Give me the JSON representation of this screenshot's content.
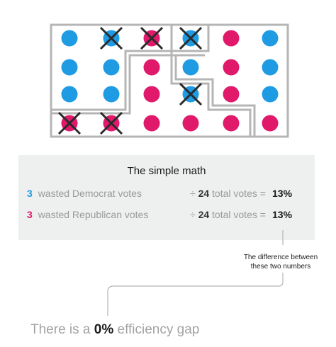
{
  "grid": {
    "colors": {
      "dem": "#1f9be3",
      "rep": "#e0196b",
      "border": "#b5b5b5",
      "cross": "#2a2a2a"
    },
    "dots": [
      {
        "r": 0,
        "c": 0,
        "party": "dem",
        "wasted": false
      },
      {
        "r": 0,
        "c": 1,
        "party": "dem",
        "wasted": true
      },
      {
        "r": 0,
        "c": 2,
        "party": "rep",
        "wasted": true
      },
      {
        "r": 0,
        "c": 3,
        "party": "dem",
        "wasted": true
      },
      {
        "r": 0,
        "c": 4,
        "party": "rep",
        "wasted": false
      },
      {
        "r": 0,
        "c": 5,
        "party": "dem",
        "wasted": false
      },
      {
        "r": 1,
        "c": 0,
        "party": "dem",
        "wasted": false
      },
      {
        "r": 1,
        "c": 1,
        "party": "dem",
        "wasted": false
      },
      {
        "r": 1,
        "c": 2,
        "party": "rep",
        "wasted": false
      },
      {
        "r": 1,
        "c": 3,
        "party": "dem",
        "wasted": false
      },
      {
        "r": 1,
        "c": 4,
        "party": "rep",
        "wasted": false
      },
      {
        "r": 1,
        "c": 5,
        "party": "dem",
        "wasted": false
      },
      {
        "r": 2,
        "c": 0,
        "party": "dem",
        "wasted": false
      },
      {
        "r": 2,
        "c": 1,
        "party": "dem",
        "wasted": false
      },
      {
        "r": 2,
        "c": 2,
        "party": "rep",
        "wasted": false
      },
      {
        "r": 2,
        "c": 3,
        "party": "dem",
        "wasted": true
      },
      {
        "r": 2,
        "c": 4,
        "party": "rep",
        "wasted": false
      },
      {
        "r": 2,
        "c": 5,
        "party": "dem",
        "wasted": false
      },
      {
        "r": 3,
        "c": 0,
        "party": "rep",
        "wasted": true
      },
      {
        "r": 3,
        "c": 1,
        "party": "rep",
        "wasted": true
      },
      {
        "r": 3,
        "c": 2,
        "party": "rep",
        "wasted": false
      },
      {
        "r": 3,
        "c": 3,
        "party": "rep",
        "wasted": false
      },
      {
        "r": 3,
        "c": 4,
        "party": "rep",
        "wasted": false
      },
      {
        "r": 3,
        "c": 5,
        "party": "rep",
        "wasted": false
      }
    ]
  },
  "math": {
    "title": "The simple math",
    "dem": {
      "wasted": "3",
      "label": "wasted Democrat votes",
      "divide": "÷",
      "total": "24",
      "total_label": "total votes =",
      "percent": "13%"
    },
    "rep": {
      "wasted": "3",
      "label": "wasted Republican votes",
      "divide": "÷",
      "total": "24",
      "total_label": "total votes =",
      "percent": "13%"
    }
  },
  "callout": {
    "line1": "The difference between",
    "line2": "these two numbers"
  },
  "efficiency": {
    "prefix": "There is a",
    "value": "0%",
    "suffix": "efficiency gap"
  }
}
